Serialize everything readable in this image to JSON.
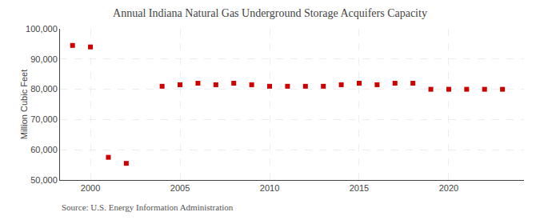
{
  "chart_data": {
    "type": "scatter",
    "title": "Annual Indiana Natural Gas Underground Storage Acquifers Capacity",
    "ylabel": "Million Cubic Feet",
    "annotations": [
      "Source: U.S. Energy Information Administration"
    ],
    "x": [
      1999,
      2000,
      2001,
      2002,
      2004,
      2005,
      2006,
      2007,
      2008,
      2009,
      2010,
      2011,
      2012,
      2013,
      2014,
      2015,
      2016,
      2017,
      2018,
      2019,
      2020,
      2021,
      2022,
      2023
    ],
    "values": [
      94500,
      94000,
      57500,
      55500,
      81000,
      81500,
      82000,
      81500,
      82000,
      81500,
      81000,
      81000,
      81000,
      81000,
      81500,
      82000,
      81500,
      82000,
      82000,
      80000,
      80000,
      80000,
      80000,
      80000
    ],
    "color": "#cc0000",
    "marker": "square",
    "xlim": [
      1998.3,
      2024.2
    ],
    "xticks": [
      2000,
      2005,
      2010,
      2015,
      2020
    ],
    "ylim": [
      50000,
      100000
    ],
    "yticks": [
      {
        "value": 50000,
        "label": "50,000"
      },
      {
        "value": 60000,
        "label": "60,000"
      },
      {
        "value": 70000,
        "label": "70,000"
      },
      {
        "value": 80000,
        "label": "80,000"
      },
      {
        "value": 90000,
        "label": "90,000"
      },
      {
        "value": 100000,
        "label": "100,000"
      }
    ],
    "grid": true
  }
}
